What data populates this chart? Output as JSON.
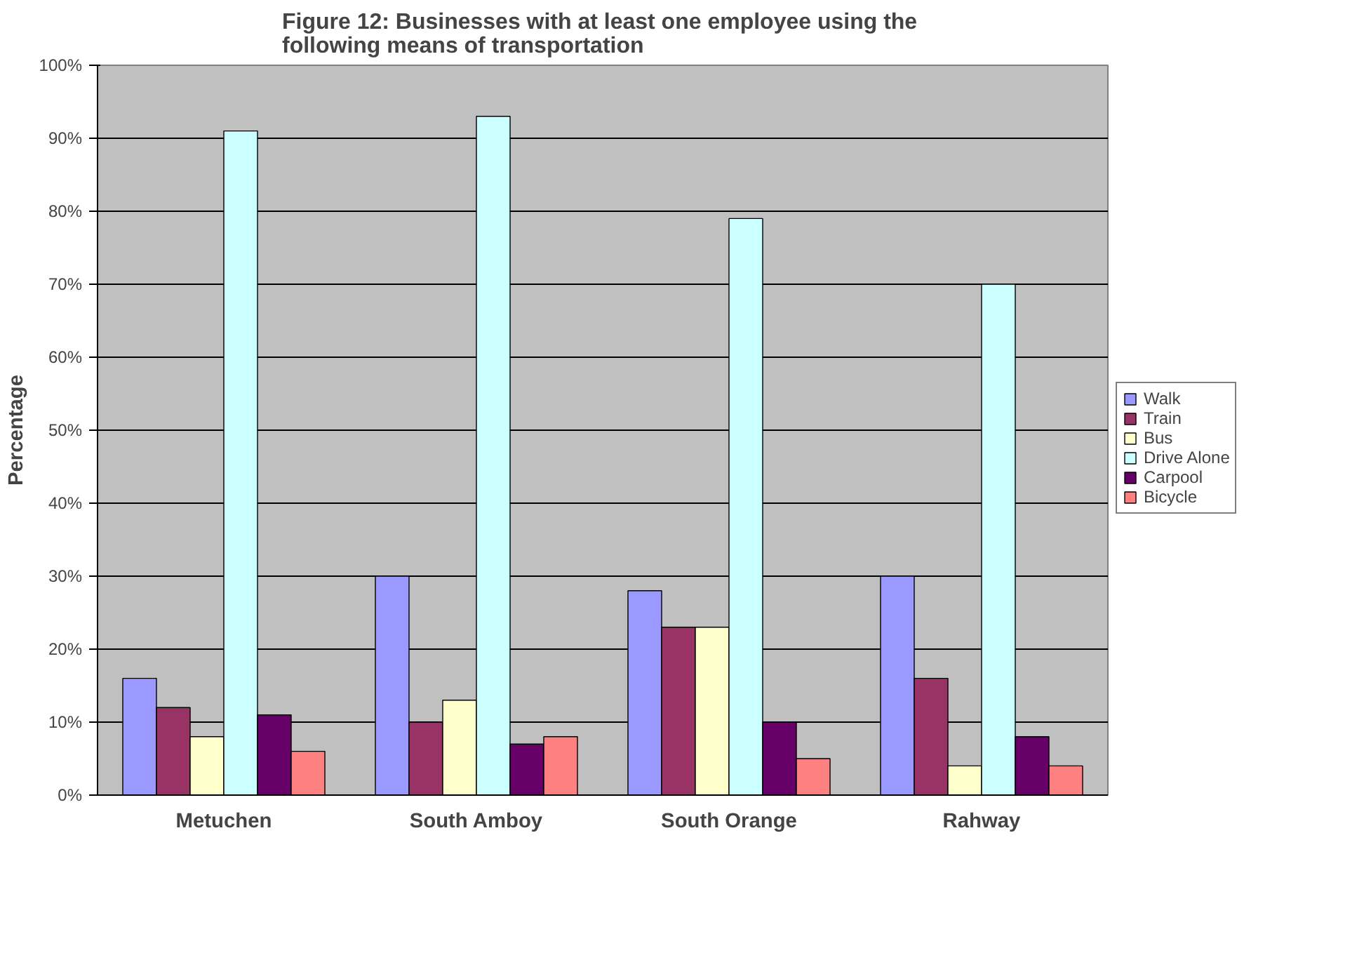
{
  "chart_data": {
    "type": "bar",
    "title": "Figure 12:  Businesses with at least one employee using the following means of transportation",
    "ylabel": "Percentage",
    "categories": [
      "Metuchen",
      "South Amboy",
      "South Orange",
      "Rahway"
    ],
    "series": [
      {
        "name": "Walk",
        "color": "#9999ff",
        "values": [
          16,
          30,
          28,
          30
        ]
      },
      {
        "name": "Train",
        "color": "#993366",
        "values": [
          12,
          10,
          23,
          16
        ]
      },
      {
        "name": "Bus",
        "color": "#ffffcc",
        "values": [
          8,
          13,
          23,
          4
        ]
      },
      {
        "name": "Drive Alone",
        "color": "#ccffff",
        "values": [
          91,
          93,
          79,
          70
        ]
      },
      {
        "name": "Carpool",
        "color": "#660066",
        "values": [
          11,
          7,
          10,
          8
        ]
      },
      {
        "name": "Bicycle",
        "color": "#ff8080",
        "values": [
          6,
          8,
          5,
          4
        ]
      }
    ],
    "ylim": [
      0,
      100
    ],
    "yticks": [
      {
        "value": 0,
        "label": "0%"
      },
      {
        "value": 10,
        "label": "10%"
      },
      {
        "value": 20,
        "label": "20%"
      },
      {
        "value": 30,
        "label": "30%"
      },
      {
        "value": 40,
        "label": "40%"
      },
      {
        "value": 50,
        "label": "50%"
      },
      {
        "value": 60,
        "label": "60%"
      },
      {
        "value": 70,
        "label": "70%"
      },
      {
        "value": 80,
        "label": "80%"
      },
      {
        "value": 90,
        "label": "90%"
      },
      {
        "value": 100,
        "label": "100%"
      }
    ],
    "grid": "y",
    "legend": "right"
  }
}
